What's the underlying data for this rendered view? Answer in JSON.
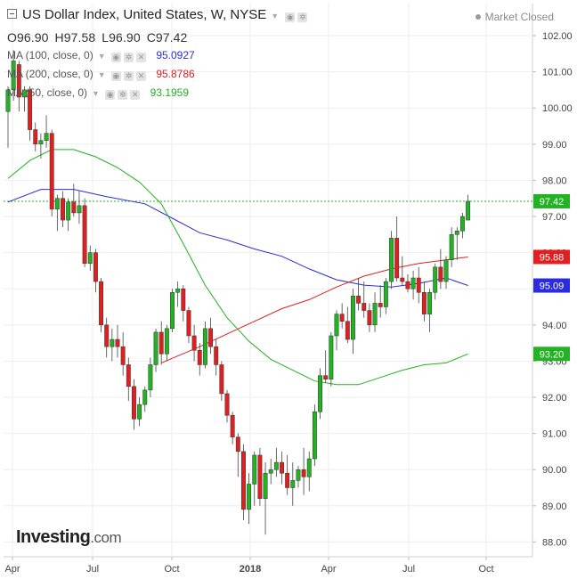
{
  "header": {
    "title": "US Dollar Index, United States, W, NYSE",
    "ohlc": {
      "open": "O96.90",
      "high": "H97.58",
      "low": "L96.90",
      "close": "C97.42"
    },
    "market_status": "Market Closed",
    "ma": [
      {
        "label": "MA (100, close, 0)",
        "value": "95.0927",
        "color": "#2b2be0"
      },
      {
        "label": "MA (200, close, 0)",
        "value": "95.8786",
        "color": "#e02020"
      },
      {
        "label": "MA (50, close, 0)",
        "value": "93.1959",
        "color": "#22b322"
      }
    ]
  },
  "logo": {
    "main": "Investing",
    "suffix": ".com"
  },
  "chart_data": {
    "type": "candlestick",
    "ylim": [
      87.6,
      102.5
    ],
    "yticks": [
      "102.00",
      "101.00",
      "100.00",
      "99.00",
      "98.00",
      "97.00",
      "96.00",
      "95.00",
      "94.00",
      "93.00",
      "92.00",
      "91.00",
      "90.00",
      "89.00",
      "88.00"
    ],
    "xticks": [
      "Apr",
      "Jul",
      "Oct",
      "2018",
      "Apr",
      "Jul",
      "Oct"
    ],
    "price_label": {
      "value": "97.42",
      "color": "#22b322"
    },
    "ma_labels": [
      {
        "value": "95.88",
        "color": "#e02020"
      },
      {
        "value": "95.09",
        "color": "#2b2be0"
      },
      {
        "value": "93.20",
        "color": "#22b322"
      }
    ],
    "grid": true,
    "up_color": "#22b322",
    "down_color": "#e02020",
    "candles": [
      [
        99.9,
        100.6,
        98.9,
        100.5
      ],
      [
        100.5,
        101.6,
        100.2,
        101.3
      ],
      [
        101.2,
        101.3,
        99.9,
        100.3
      ],
      [
        100.3,
        100.6,
        99.9,
        100.5
      ],
      [
        100.5,
        100.6,
        99.1,
        99.4
      ],
      [
        99.4,
        99.6,
        98.8,
        99.0
      ],
      [
        99.0,
        99.3,
        98.6,
        99.1
      ],
      [
        99.1,
        99.8,
        98.9,
        99.3
      ],
      [
        99.3,
        99.4,
        97.0,
        97.2
      ],
      [
        97.2,
        97.6,
        96.6,
        97.5
      ],
      [
        97.5,
        97.7,
        96.7,
        96.9
      ],
      [
        96.9,
        97.5,
        96.6,
        97.4
      ],
      [
        97.4,
        97.9,
        97.0,
        97.1
      ],
      [
        97.1,
        97.7,
        96.8,
        97.3
      ],
      [
        97.3,
        97.5,
        95.6,
        95.7
      ],
      [
        95.7,
        96.2,
        95.5,
        96.0
      ],
      [
        96.0,
        96.1,
        94.9,
        95.2
      ],
      [
        95.2,
        95.3,
        93.8,
        94.0
      ],
      [
        94.0,
        94.2,
        93.1,
        93.4
      ],
      [
        93.4,
        93.9,
        93.0,
        93.6
      ],
      [
        93.6,
        94.0,
        93.1,
        93.4
      ],
      [
        93.4,
        93.8,
        92.6,
        92.9
      ],
      [
        92.9,
        93.1,
        91.9,
        92.3
      ],
      [
        92.3,
        92.5,
        91.1,
        91.4
      ],
      [
        91.4,
        92.0,
        91.2,
        91.8
      ],
      [
        91.8,
        92.3,
        91.6,
        92.2
      ],
      [
        92.2,
        93.1,
        92.0,
        92.9
      ],
      [
        92.9,
        93.9,
        92.7,
        93.8
      ],
      [
        93.8,
        94.1,
        92.9,
        93.2
      ],
      [
        93.2,
        94.0,
        93.0,
        93.9
      ],
      [
        93.9,
        95.0,
        93.8,
        94.9
      ],
      [
        94.9,
        95.2,
        94.5,
        95.0
      ],
      [
        95.0,
        95.1,
        94.1,
        94.4
      ],
      [
        94.4,
        94.5,
        93.5,
        93.7
      ],
      [
        93.7,
        94.0,
        93.0,
        93.3
      ],
      [
        93.3,
        93.5,
        92.6,
        92.9
      ],
      [
        92.9,
        94.1,
        92.8,
        93.9
      ],
      [
        93.9,
        94.2,
        93.2,
        93.4
      ],
      [
        93.4,
        93.6,
        92.6,
        92.9
      ],
      [
        92.9,
        93.0,
        91.9,
        92.1
      ],
      [
        92.1,
        92.2,
        91.3,
        91.5
      ],
      [
        91.5,
        91.6,
        90.7,
        90.9
      ],
      [
        90.9,
        91.0,
        89.8,
        90.5
      ],
      [
        90.5,
        90.7,
        88.6,
        88.9
      ],
      [
        88.9,
        89.9,
        88.5,
        89.6
      ],
      [
        89.6,
        90.5,
        89.0,
        90.4
      ],
      [
        90.4,
        90.6,
        89.0,
        89.2
      ],
      [
        89.2,
        90.2,
        88.2,
        89.9
      ],
      [
        89.9,
        90.3,
        89.6,
        90.0
      ],
      [
        90.0,
        90.6,
        89.8,
        90.2
      ],
      [
        90.2,
        90.5,
        89.6,
        89.9
      ],
      [
        89.9,
        90.4,
        89.3,
        89.5
      ],
      [
        89.5,
        90.2,
        89.0,
        89.7
      ],
      [
        89.7,
        90.1,
        89.5,
        90.0
      ],
      [
        90.0,
        90.6,
        89.3,
        89.8
      ],
      [
        89.8,
        90.5,
        89.4,
        90.3
      ],
      [
        90.3,
        91.8,
        90.1,
        91.6
      ],
      [
        91.6,
        92.8,
        91.4,
        92.6
      ],
      [
        92.6,
        93.3,
        92.4,
        92.5
      ],
      [
        92.5,
        93.8,
        92.3,
        93.7
      ],
      [
        93.7,
        94.4,
        93.3,
        94.3
      ],
      [
        94.3,
        94.6,
        93.9,
        94.1
      ],
      [
        94.1,
        94.5,
        93.5,
        93.6
      ],
      [
        93.6,
        95.0,
        93.2,
        94.8
      ],
      [
        94.8,
        95.3,
        94.4,
        94.6
      ],
      [
        94.6,
        95.2,
        94.2,
        94.4
      ],
      [
        94.4,
        94.6,
        93.8,
        94.0
      ],
      [
        94.0,
        94.9,
        93.8,
        94.6
      ],
      [
        94.6,
        95.1,
        94.2,
        94.5
      ],
      [
        94.5,
        95.3,
        94.3,
        95.2
      ],
      [
        95.2,
        96.6,
        95.0,
        96.4
      ],
      [
        96.4,
        97.0,
        95.2,
        95.3
      ],
      [
        95.3,
        95.9,
        95.1,
        95.2
      ],
      [
        95.2,
        95.4,
        94.9,
        95.0
      ],
      [
        95.0,
        95.5,
        94.7,
        95.3
      ],
      [
        95.3,
        95.6,
        94.6,
        94.9
      ],
      [
        94.9,
        95.2,
        94.1,
        94.3
      ],
      [
        94.3,
        95.0,
        93.8,
        94.9
      ],
      [
        94.9,
        95.7,
        94.7,
        95.6
      ],
      [
        95.6,
        96.1,
        95.0,
        95.2
      ],
      [
        95.2,
        95.9,
        95.0,
        95.8
      ],
      [
        95.8,
        96.7,
        95.6,
        96.5
      ],
      [
        96.5,
        96.7,
        95.8,
        96.6
      ],
      [
        96.6,
        97.1,
        96.4,
        97.0
      ],
      [
        96.9,
        97.6,
        96.9,
        97.42
      ]
    ],
    "ma_series": [
      {
        "name": "MA (100, close, 0)",
        "color": "#2b2be0",
        "values": [
          [
            0,
            97.4
          ],
          [
            6,
            97.75
          ],
          [
            12,
            97.75
          ],
          [
            18,
            97.55
          ],
          [
            25,
            97.35
          ],
          [
            30,
            96.95
          ],
          [
            35,
            96.55
          ],
          [
            40,
            96.35
          ],
          [
            45,
            96.1
          ],
          [
            50,
            95.9
          ],
          [
            55,
            95.55
          ],
          [
            60,
            95.25
          ],
          [
            65,
            95.1
          ],
          [
            70,
            95.05
          ],
          [
            75,
            95.15
          ],
          [
            80,
            95.3
          ],
          [
            84,
            95.09
          ]
        ]
      },
      {
        "name": "MA (200, close, 0)",
        "color": "#e02020",
        "values": [
          [
            28,
            92.95
          ],
          [
            35,
            93.4
          ],
          [
            40,
            93.75
          ],
          [
            45,
            94.1
          ],
          [
            50,
            94.45
          ],
          [
            55,
            94.7
          ],
          [
            60,
            95.05
          ],
          [
            65,
            95.35
          ],
          [
            70,
            95.55
          ],
          [
            75,
            95.7
          ],
          [
            80,
            95.8
          ],
          [
            84,
            95.88
          ]
        ]
      },
      {
        "name": "MA (50, close, 0)",
        "color": "#22b322",
        "values": [
          [
            0,
            98.05
          ],
          [
            4,
            98.55
          ],
          [
            8,
            98.85
          ],
          [
            12,
            98.85
          ],
          [
            16,
            98.65
          ],
          [
            20,
            98.35
          ],
          [
            24,
            97.95
          ],
          [
            28,
            97.35
          ],
          [
            32,
            96.25
          ],
          [
            36,
            95.1
          ],
          [
            40,
            94.2
          ],
          [
            44,
            93.55
          ],
          [
            48,
            93.05
          ],
          [
            52,
            92.75
          ],
          [
            56,
            92.45
          ],
          [
            60,
            92.35
          ],
          [
            64,
            92.35
          ],
          [
            68,
            92.55
          ],
          [
            72,
            92.75
          ],
          [
            76,
            92.9
          ],
          [
            80,
            92.95
          ],
          [
            84,
            93.2
          ]
        ]
      }
    ]
  }
}
